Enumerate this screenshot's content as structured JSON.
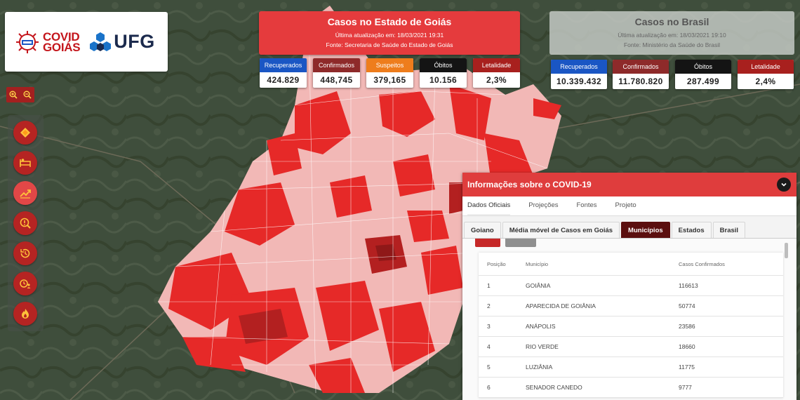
{
  "logos": {
    "covid_line1": "COVID",
    "covid_line2": "GOIÁS",
    "ufg": "UFG"
  },
  "state": {
    "title": "Casos no Estado de Goiás",
    "updated": "Última atualização em: 18/03/2021 19:31",
    "source": "Fonte: Secretaria de Saúde do Estado de Goiás",
    "stats": [
      {
        "label": "Recuperados",
        "value": "424.829",
        "color": "#1a56c4"
      },
      {
        "label": "Confirmados",
        "value": "448,745",
        "color": "#8e2a2a"
      },
      {
        "label": "Suspeitos",
        "value": "379,165",
        "color": "#ee7d1c"
      },
      {
        "label": "Óbitos",
        "value": "10.156",
        "color": "#141414"
      },
      {
        "label": "Letalidade",
        "value": "2,3%",
        "color": "#a8201e"
      }
    ]
  },
  "brasil": {
    "title": "Casos no Brasil",
    "updated": "Última atualização em: 18/03/2021 19:10",
    "source": "Fonte: Ministério da Saúde do Brasil",
    "stats": [
      {
        "label": "Recuperados",
        "value": "10.339.432",
        "color": "#1a56c4"
      },
      {
        "label": "Confirmados",
        "value": "11.780.820",
        "color": "#8e2a2a"
      },
      {
        "label": "Óbitos",
        "value": "287.499",
        "color": "#141414"
      },
      {
        "label": "Letalidade",
        "value": "2,4%",
        "color": "#a8201e"
      }
    ]
  },
  "toolbar": {
    "icons": [
      "layers-icon",
      "hospital-bed-icon",
      "trending-chart-icon",
      "search-alert-icon",
      "history-icon",
      "timer-person-icon",
      "fire-icon"
    ]
  },
  "panel": {
    "title": "Informações sobre o COVID-19",
    "tabs": [
      "Dados Oficiais",
      "Projeções",
      "Fontes",
      "Projeto"
    ],
    "subtabs": [
      "Goiano",
      "Média móvel de Casos em Goiás",
      "Municípios",
      "Estados",
      "Brasil"
    ],
    "active_subtab": 2,
    "table": {
      "headers": [
        "Posição",
        "Município",
        "Casos Confirmados"
      ],
      "rows": [
        [
          "1",
          "GOIÂNIA",
          "116613"
        ],
        [
          "2",
          "APARECIDA DE GOIÂNIA",
          "50774"
        ],
        [
          "3",
          "ANÁPOLIS",
          "23586"
        ],
        [
          "4",
          "RIO VERDE",
          "18660"
        ],
        [
          "5",
          "LUZIÂNIA",
          "11775"
        ],
        [
          "6",
          "SENADOR CANEDO",
          "9777"
        ]
      ]
    }
  },
  "colors": {
    "accent": "#df3d3d",
    "dark_red": "#5b0f0f"
  }
}
